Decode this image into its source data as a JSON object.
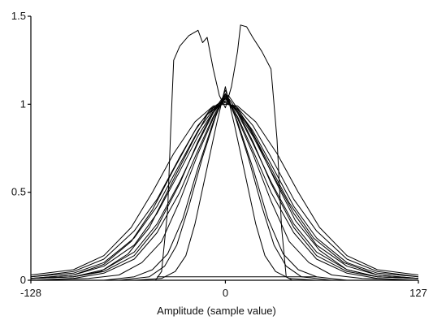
{
  "chart_data": {
    "type": "line",
    "title": "",
    "xlabel": "Amplitude (sample value)",
    "ylabel": "",
    "xlim": [
      -128,
      127
    ],
    "ylim": [
      0,
      1.5
    ],
    "x_ticks": [
      "-128",
      "0",
      "127"
    ],
    "x_tick_values": [
      -128,
      0,
      127
    ],
    "y_ticks": [
      "0",
      "0.5",
      "1",
      "1.5"
    ],
    "y_tick_values": [
      0,
      0.5,
      1,
      1.5
    ],
    "grid": false,
    "legend": "none",
    "line_color": "#000000",
    "series": [
      {
        "values": [
          [
            -128,
            0.01
          ],
          [
            -100,
            0.03
          ],
          [
            -80,
            0.08
          ],
          [
            -60,
            0.2
          ],
          [
            -45,
            0.38
          ],
          [
            -30,
            0.62
          ],
          [
            -18,
            0.82
          ],
          [
            -8,
            0.96
          ],
          [
            0,
            1.03
          ],
          [
            8,
            0.96
          ],
          [
            18,
            0.82
          ],
          [
            30,
            0.62
          ],
          [
            45,
            0.38
          ],
          [
            60,
            0.2
          ],
          [
            80,
            0.08
          ],
          [
            100,
            0.03
          ],
          [
            127,
            0.01
          ]
        ]
      },
      {
        "values": [
          [
            -128,
            0.01
          ],
          [
            -100,
            0.02
          ],
          [
            -80,
            0.06
          ],
          [
            -60,
            0.16
          ],
          [
            -45,
            0.32
          ],
          [
            -30,
            0.56
          ],
          [
            -18,
            0.78
          ],
          [
            -8,
            0.95
          ],
          [
            0,
            1.04
          ],
          [
            8,
            0.95
          ],
          [
            18,
            0.78
          ],
          [
            30,
            0.56
          ],
          [
            45,
            0.32
          ],
          [
            60,
            0.16
          ],
          [
            80,
            0.06
          ],
          [
            100,
            0.02
          ],
          [
            127,
            0.01
          ]
        ]
      },
      {
        "values": [
          [
            -128,
            0.02
          ],
          [
            -100,
            0.04
          ],
          [
            -80,
            0.1
          ],
          [
            -60,
            0.24
          ],
          [
            -45,
            0.42
          ],
          [
            -30,
            0.66
          ],
          [
            -18,
            0.85
          ],
          [
            -8,
            0.97
          ],
          [
            0,
            1.02
          ],
          [
            8,
            0.97
          ],
          [
            18,
            0.85
          ],
          [
            30,
            0.66
          ],
          [
            45,
            0.42
          ],
          [
            60,
            0.24
          ],
          [
            80,
            0.1
          ],
          [
            100,
            0.04
          ],
          [
            127,
            0.02
          ]
        ]
      },
      {
        "values": [
          [
            -128,
            0.0
          ],
          [
            -100,
            0.01
          ],
          [
            -80,
            0.04
          ],
          [
            -60,
            0.12
          ],
          [
            -45,
            0.27
          ],
          [
            -30,
            0.5
          ],
          [
            -18,
            0.74
          ],
          [
            -8,
            0.93
          ],
          [
            0,
            1.05
          ],
          [
            8,
            0.93
          ],
          [
            18,
            0.74
          ],
          [
            30,
            0.5
          ],
          [
            45,
            0.27
          ],
          [
            60,
            0.12
          ],
          [
            80,
            0.04
          ],
          [
            100,
            0.01
          ],
          [
            127,
            0.0
          ]
        ]
      },
      {
        "values": [
          [
            -128,
            0.02
          ],
          [
            -100,
            0.05
          ],
          [
            -80,
            0.12
          ],
          [
            -60,
            0.28
          ],
          [
            -45,
            0.46
          ],
          [
            -30,
            0.7
          ],
          [
            -18,
            0.88
          ],
          [
            -8,
            0.98
          ],
          [
            0,
            1.01
          ],
          [
            8,
            0.98
          ],
          [
            18,
            0.88
          ],
          [
            30,
            0.7
          ],
          [
            45,
            0.46
          ],
          [
            60,
            0.28
          ],
          [
            80,
            0.12
          ],
          [
            100,
            0.05
          ],
          [
            127,
            0.02
          ]
        ]
      },
      {
        "values": [
          [
            -128,
            0.01
          ],
          [
            -100,
            0.02
          ],
          [
            -80,
            0.05
          ],
          [
            -60,
            0.14
          ],
          [
            -45,
            0.3
          ],
          [
            -30,
            0.55
          ],
          [
            -18,
            0.79
          ],
          [
            -8,
            0.96
          ],
          [
            0,
            1.06
          ],
          [
            8,
            0.96
          ],
          [
            18,
            0.79
          ],
          [
            30,
            0.55
          ],
          [
            45,
            0.3
          ],
          [
            60,
            0.14
          ],
          [
            80,
            0.05
          ],
          [
            100,
            0.02
          ],
          [
            127,
            0.01
          ]
        ]
      },
      {
        "values": [
          [
            -128,
            0.0
          ],
          [
            -90,
            0.01
          ],
          [
            -70,
            0.03
          ],
          [
            -55,
            0.1
          ],
          [
            -42,
            0.22
          ],
          [
            -30,
            0.45
          ],
          [
            -18,
            0.72
          ],
          [
            -8,
            0.92
          ],
          [
            0,
            1.04
          ],
          [
            8,
            0.92
          ],
          [
            18,
            0.72
          ],
          [
            30,
            0.45
          ],
          [
            42,
            0.22
          ],
          [
            55,
            0.1
          ],
          [
            70,
            0.03
          ],
          [
            90,
            0.01
          ],
          [
            127,
            0.0
          ]
        ]
      },
      {
        "values": [
          [
            -128,
            0.0
          ],
          [
            -80,
            0.0
          ],
          [
            -60,
            0.02
          ],
          [
            -48,
            0.06
          ],
          [
            -38,
            0.15
          ],
          [
            -28,
            0.35
          ],
          [
            -18,
            0.64
          ],
          [
            -8,
            0.9
          ],
          [
            0,
            1.06
          ],
          [
            8,
            0.9
          ],
          [
            18,
            0.64
          ],
          [
            28,
            0.35
          ],
          [
            38,
            0.15
          ],
          [
            48,
            0.06
          ],
          [
            60,
            0.02
          ],
          [
            80,
            0.0
          ],
          [
            127,
            0.0
          ]
        ]
      },
      {
        "values": [
          [
            -128,
            0.0
          ],
          [
            -70,
            0.0
          ],
          [
            -50,
            0.02
          ],
          [
            -40,
            0.08
          ],
          [
            -32,
            0.2
          ],
          [
            -24,
            0.42
          ],
          [
            -15,
            0.7
          ],
          [
            -6,
            0.94
          ],
          [
            0,
            1.08
          ],
          [
            6,
            0.94
          ],
          [
            15,
            0.7
          ],
          [
            24,
            0.42
          ],
          [
            32,
            0.2
          ],
          [
            40,
            0.08
          ],
          [
            50,
            0.02
          ],
          [
            70,
            0.0
          ],
          [
            127,
            0.0
          ]
        ]
      },
      {
        "values": [
          [
            -128,
            0.01
          ],
          [
            -100,
            0.03
          ],
          [
            -80,
            0.09
          ],
          [
            -62,
            0.22
          ],
          [
            -48,
            0.4
          ],
          [
            -34,
            0.63
          ],
          [
            -20,
            0.85
          ],
          [
            -10,
            0.97
          ],
          [
            -2,
            1.02
          ],
          [
            6,
            0.98
          ],
          [
            16,
            0.87
          ],
          [
            28,
            0.67
          ],
          [
            42,
            0.44
          ],
          [
            58,
            0.24
          ],
          [
            78,
            0.1
          ],
          [
            100,
            0.03
          ],
          [
            127,
            0.01
          ]
        ]
      },
      {
        "values": [
          [
            -128,
            0.01
          ],
          [
            -100,
            0.02
          ],
          [
            -82,
            0.05
          ],
          [
            -64,
            0.15
          ],
          [
            -50,
            0.3
          ],
          [
            -36,
            0.54
          ],
          [
            -22,
            0.78
          ],
          [
            -12,
            0.94
          ],
          [
            2,
            1.05
          ],
          [
            10,
            0.95
          ],
          [
            20,
            0.8
          ],
          [
            32,
            0.58
          ],
          [
            46,
            0.34
          ],
          [
            62,
            0.17
          ],
          [
            80,
            0.06
          ],
          [
            100,
            0.02
          ],
          [
            127,
            0.01
          ]
        ]
      },
      {
        "values": [
          [
            -128,
            0.03
          ],
          [
            -100,
            0.06
          ],
          [
            -80,
            0.14
          ],
          [
            -62,
            0.3
          ],
          [
            -48,
            0.5
          ],
          [
            -34,
            0.72
          ],
          [
            -20,
            0.9
          ],
          [
            -8,
            0.99
          ],
          [
            0,
            1.0
          ],
          [
            8,
            0.99
          ],
          [
            20,
            0.9
          ],
          [
            34,
            0.72
          ],
          [
            48,
            0.5
          ],
          [
            62,
            0.3
          ],
          [
            80,
            0.14
          ],
          [
            100,
            0.06
          ],
          [
            127,
            0.03
          ]
        ]
      },
      {
        "values": [
          [
            -128,
            0.0
          ],
          [
            -60,
            0.0
          ],
          [
            -42,
            0.01
          ],
          [
            -33,
            0.05
          ],
          [
            -26,
            0.14
          ],
          [
            -20,
            0.32
          ],
          [
            -13,
            0.6
          ],
          [
            -6,
            0.88
          ],
          [
            0,
            1.1
          ],
          [
            6,
            0.88
          ],
          [
            13,
            0.6
          ],
          [
            20,
            0.32
          ],
          [
            26,
            0.14
          ],
          [
            33,
            0.05
          ],
          [
            42,
            0.01
          ],
          [
            60,
            0.0
          ],
          [
            127,
            0.0
          ]
        ]
      },
      {
        "values": [
          [
            -128,
            0.0
          ],
          [
            -46,
            0.0
          ],
          [
            -42,
            0.05
          ],
          [
            -38,
            0.4
          ],
          [
            -36,
            0.85
          ],
          [
            -34,
            1.25
          ],
          [
            -30,
            1.33
          ],
          [
            -24,
            1.39
          ],
          [
            -18,
            1.42
          ],
          [
            -15,
            1.35
          ],
          [
            -12,
            1.38
          ],
          [
            -8,
            1.2
          ],
          [
            -4,
            1.05
          ],
          [
            0,
            0.98
          ],
          [
            4,
            1.1
          ],
          [
            8,
            1.3
          ],
          [
            10,
            1.45
          ],
          [
            14,
            1.44
          ],
          [
            18,
            1.38
          ],
          [
            24,
            1.3
          ],
          [
            30,
            1.2
          ],
          [
            34,
            0.8
          ],
          [
            37,
            0.3
          ],
          [
            40,
            0.02
          ],
          [
            44,
            0.0
          ],
          [
            127,
            0.0
          ]
        ]
      },
      {
        "values": [
          [
            -45,
            0.02
          ],
          [
            60,
            0.02
          ]
        ]
      }
    ]
  }
}
